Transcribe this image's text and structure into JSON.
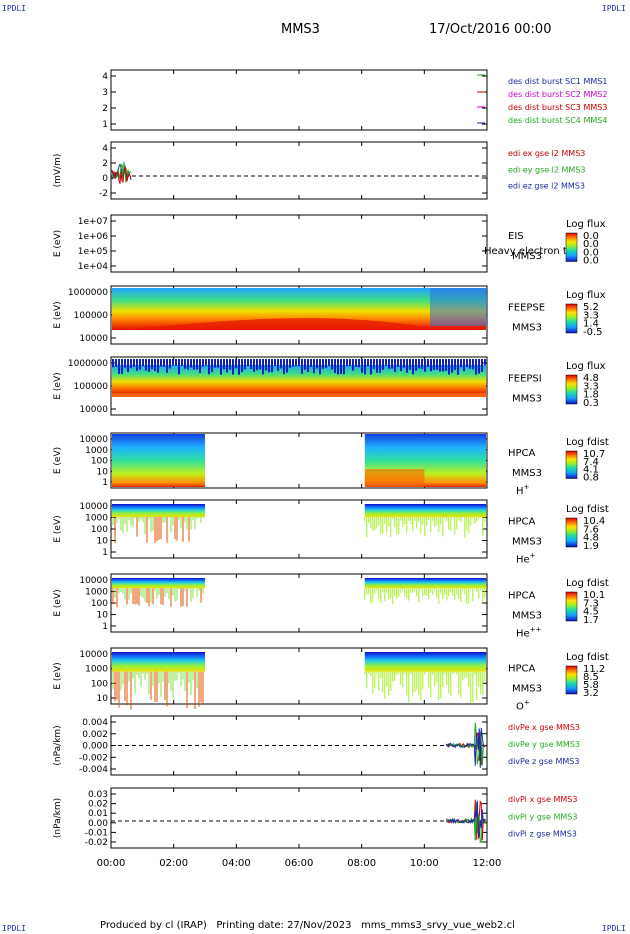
{
  "header": {
    "corner_label": "IPDLI",
    "spacecraft": "MMS3",
    "date": "17/Oct/2016 00:00"
  },
  "footer": {
    "text": "Produced by cl (IRAP)   Printing date: 27/Nov/2023   mms_mms3_srvy_vue_web2.cl"
  },
  "chart_data": {
    "type": "area",
    "x_ticks": [
      "00:00",
      "02:00",
      "04:00",
      "06:00",
      "08:00",
      "10:00",
      "12:00"
    ],
    "x_range_hours": [
      0,
      12
    ],
    "panels": [
      {
        "id": "burst",
        "ylabel": "",
        "yticks": [
          "4",
          "3",
          "2",
          "1"
        ],
        "ylim": [
          0.5,
          4.5
        ],
        "legend": [
          {
            "text": "des dist burst SC1 MMS1",
            "color": "#1a2aa8"
          },
          {
            "text": "des dist burst SC2 MMS2",
            "color": "#cc00cc"
          },
          {
            "text": "des dist burst SC3 MMS3",
            "color": "#cc0000"
          },
          {
            "text": "des dist burst SC4 MMS4",
            "color": "#22aa22"
          }
        ]
      },
      {
        "id": "edi",
        "ylabel": "(mV/m)",
        "yticks": [
          "4",
          "2",
          "0",
          "-2"
        ],
        "ylim": [
          -3.5,
          4.5
        ],
        "legend": [
          {
            "text": "edi ex gse l2 MMS3",
            "color": "#cc0000"
          },
          {
            "text": "edi ey gse l2 MMS3",
            "color": "#22aa22"
          },
          {
            "text": "edi ez gse l2 MMS3",
            "color": "#1a2aa8"
          }
        ]
      },
      {
        "id": "eis",
        "ylabel": "E (eV)",
        "yticks": [
          "1e+07",
          "1e+06",
          "1e+05",
          "1e+04"
        ],
        "instrument": [
          "EIS",
          "MMS3"
        ],
        "overlay": "Heavy electron to",
        "cbar_title": "Log flux",
        "cbar_ticks": [
          "0.0",
          "0.0",
          "0.0",
          "0.0"
        ]
      },
      {
        "id": "feepse",
        "ylabel": "E (eV)",
        "yticks": [
          "1000000",
          "100000",
          "10000"
        ],
        "instrument": [
          "FEEPSE",
          "MMS3"
        ],
        "cbar_title": "Log flux",
        "cbar_ticks": [
          "5.2",
          "3.3",
          "1.4",
          "-0.5"
        ]
      },
      {
        "id": "feepsi",
        "ylabel": "E (eV)",
        "yticks": [
          "1000000",
          "100000",
          "10000"
        ],
        "instrument": [
          "FEEPSI",
          "MMS3"
        ],
        "cbar_title": "Log flux",
        "cbar_ticks": [
          "4.8",
          "3.3",
          "1.8",
          "0.3"
        ]
      },
      {
        "id": "hpca_h",
        "ylabel": "E (eV)",
        "yticks": [
          "10000",
          "1000",
          "100",
          "10",
          "1"
        ],
        "instrument": [
          "HPCA",
          "MMS3"
        ],
        "species": "H",
        "species_sup": "+",
        "cbar_title": "Log fdist",
        "cbar_ticks": [
          "10.7",
          "7.4",
          "4.1",
          "0.8"
        ]
      },
      {
        "id": "hpca_he1",
        "ylabel": "E (eV)",
        "yticks": [
          "10000",
          "1000",
          "100",
          "10",
          "1"
        ],
        "instrument": [
          "HPCA",
          "MMS3"
        ],
        "species": "He",
        "species_sup": "+",
        "cbar_title": "Log fdist",
        "cbar_ticks": [
          "10.4",
          "7.6",
          "4.8",
          "1.9"
        ]
      },
      {
        "id": "hpca_he2",
        "ylabel": "E (eV)",
        "yticks": [
          "10000",
          "1000",
          "100",
          "10",
          "1"
        ],
        "instrument": [
          "HPCA",
          "MMS3"
        ],
        "species": "He",
        "species_sup": "++",
        "cbar_title": "Log fdist",
        "cbar_ticks": [
          "10.1",
          "7.3",
          "4.5",
          "1.7"
        ]
      },
      {
        "id": "hpca_o",
        "ylabel": "E (eV)",
        "yticks": [
          "10000",
          "1000",
          "100",
          "10"
        ],
        "instrument": [
          "HPCA",
          "MMS3"
        ],
        "species": "O",
        "species_sup": "+",
        "cbar_title": "Log fdist",
        "cbar_ticks": [
          "11.2",
          "8.5",
          "5.8",
          "3.2"
        ]
      },
      {
        "id": "divpe",
        "ylabel": "(nPa/km)",
        "yticks": [
          "0.004",
          "0.002",
          "0.000",
          "-0.002",
          "-0.004"
        ],
        "ylim": [
          -0.005,
          0.005
        ],
        "legend": [
          {
            "text": "divPe x gse MMS3",
            "color": "#cc0000"
          },
          {
            "text": "divPe y gse MMS3",
            "color": "#22aa22"
          },
          {
            "text": "divPe z gse MMS3",
            "color": "#1a2aa8"
          }
        ]
      },
      {
        "id": "divpi",
        "ylabel": "(nPa/km)",
        "yticks": [
          "0.03",
          "0.02",
          "0.01",
          "0.00",
          "-0.01",
          "-0.02"
        ],
        "ylim": [
          -0.025,
          0.035
        ],
        "legend": [
          {
            "text": "divPi x gse MMS3",
            "color": "#cc0000"
          },
          {
            "text": "divPi y gse MMS3",
            "color": "#22aa22"
          },
          {
            "text": "divPi z gse MMS3",
            "color": "#1a2aa8"
          }
        ]
      }
    ]
  }
}
